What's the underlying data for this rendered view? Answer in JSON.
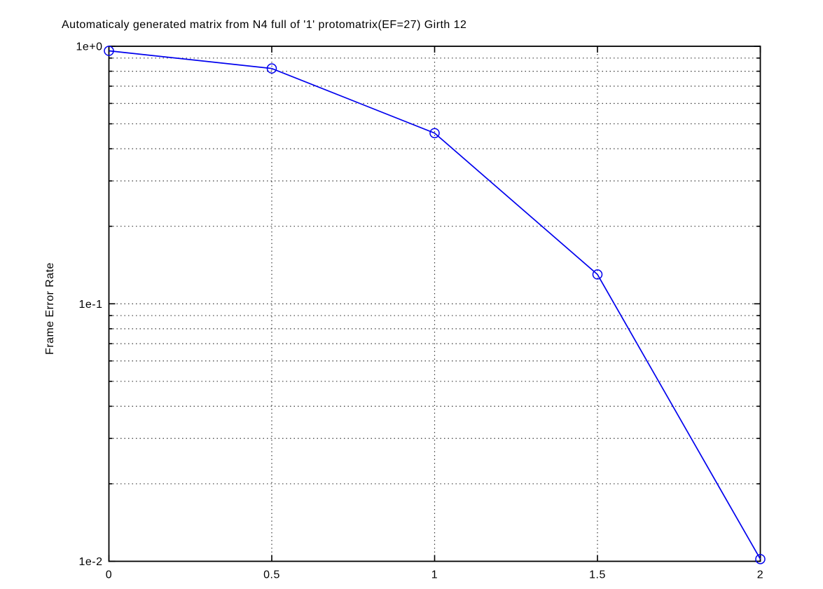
{
  "chart_data": {
    "type": "line",
    "title": "Automaticaly generated matrix from N4 full of '1' protomatrix(EF=27) Girth 12",
    "xlabel": "",
    "ylabel": "Frame Error Rate",
    "x_axis": {
      "scale": "linear",
      "min": 0,
      "max": 2,
      "ticks": [
        0,
        0.5,
        1,
        1.5,
        2
      ],
      "tick_labels": [
        "0",
        "0.5",
        "1",
        "1.5",
        "2"
      ]
    },
    "y_axis": {
      "scale": "log",
      "min": 0.01,
      "max": 1,
      "ticks": [
        1,
        0.1,
        0.01
      ],
      "tick_labels": [
        "1e+0",
        "1e-1",
        "1e-2"
      ]
    },
    "grid": "on",
    "grid_style": "dotted",
    "legend": "none",
    "series": [
      {
        "name": "Frame Error Rate",
        "marker": "o",
        "line_style": "solid",
        "color": "#0000ee",
        "x": [
          0,
          0.5,
          1,
          1.5,
          2
        ],
        "y": [
          0.96,
          0.82,
          0.46,
          0.13,
          0.0102
        ]
      }
    ]
  },
  "colors": {
    "background": "#ffffff",
    "axis": "#000000",
    "grid": "#3a3a3a",
    "line": "#0000ee",
    "text": "#000000"
  }
}
